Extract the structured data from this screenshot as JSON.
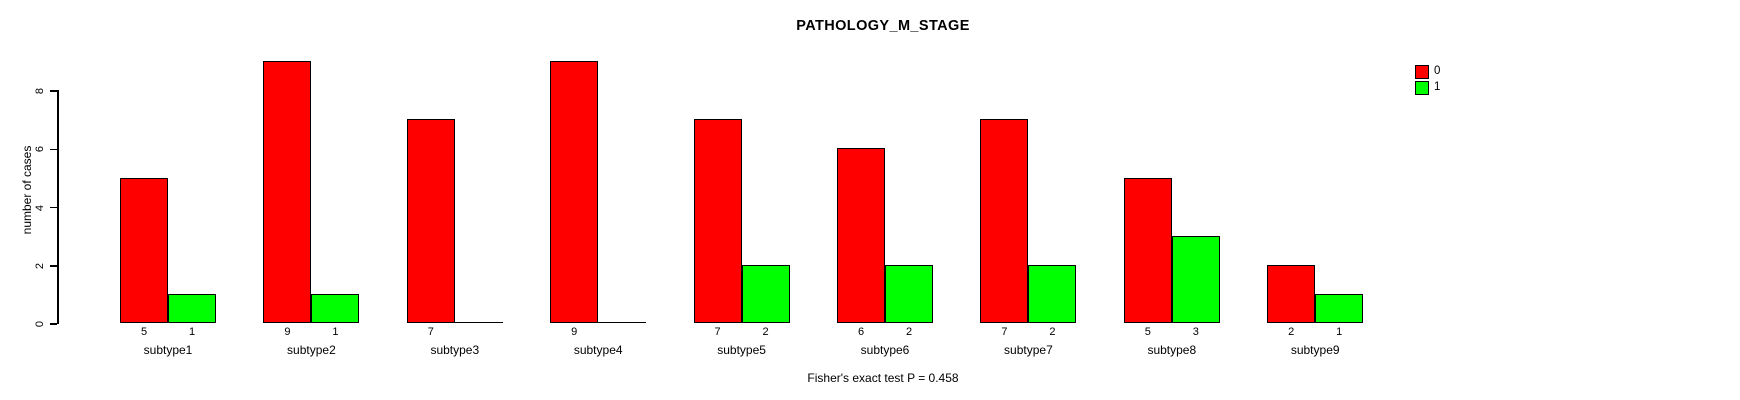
{
  "chart_data": {
    "type": "bar",
    "title": "PATHOLOGY_M_STAGE",
    "ylabel": "number of cases",
    "footer": "Fisher's exact test P = 0.458",
    "categories": [
      "subtype1",
      "subtype2",
      "subtype3",
      "subtype4",
      "subtype5",
      "subtype6",
      "subtype7",
      "subtype8",
      "subtype9"
    ],
    "series": [
      {
        "name": "0",
        "color": "#ff0000",
        "values": [
          5,
          9,
          7,
          9,
          7,
          6,
          7,
          5,
          2
        ]
      },
      {
        "name": "1",
        "color": "#00ff00",
        "values": [
          1,
          1,
          0,
          0,
          2,
          2,
          2,
          3,
          1
        ]
      }
    ],
    "bar_count_labels": [
      [
        "5",
        "9",
        "7",
        "9",
        "7",
        "6",
        "7",
        "5",
        "2"
      ],
      [
        "1",
        "1",
        "",
        "",
        "2",
        "2",
        "2",
        "3",
        "1"
      ]
    ],
    "yticks": [
      0,
      2,
      4,
      6,
      8
    ],
    "ylim": [
      0,
      9
    ],
    "grid": false,
    "legend_position": "top-right",
    "legend_entries": [
      {
        "label": "0",
        "color": "#ff0000"
      },
      {
        "label": "1",
        "color": "#00ff00"
      }
    ],
    "bar_border_color": "#000000",
    "background_color": "#ffffff",
    "text_color": "#000000"
  }
}
